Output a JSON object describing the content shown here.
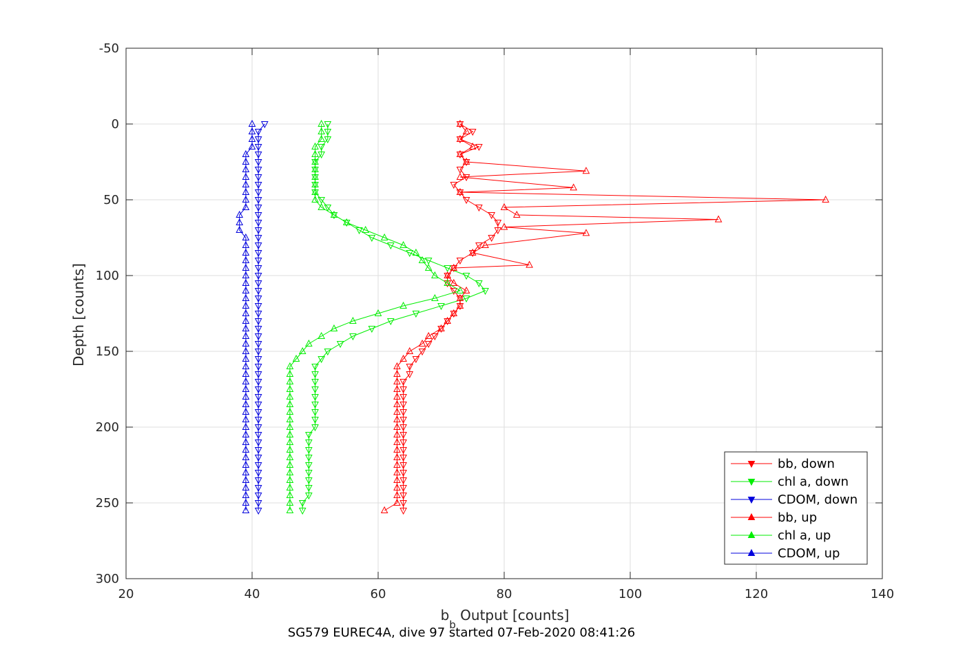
{
  "chart_data": {
    "type": "line",
    "title": "",
    "caption": "SG579 EUREC4A, dive 97 started 07-Feb-2020 08:41:26",
    "xlabel_main": "b",
    "xlabel_sub": "b",
    "xlabel_rest": " Output [counts]",
    "ylabel": "Depth [counts]",
    "xlim": [
      20,
      140
    ],
    "ylim": [
      -50,
      300
    ],
    "y_reversed": true,
    "xticks": [
      20,
      40,
      60,
      80,
      100,
      120,
      140
    ],
    "yticks": [
      -50,
      0,
      50,
      100,
      150,
      200,
      250,
      300
    ],
    "grid": true,
    "legend_position": "bottom-right",
    "series": [
      {
        "name": "bb, down",
        "color": "#ff0000",
        "marker": "triangle-down",
        "points": [
          [
            73,
            0
          ],
          [
            75,
            5
          ],
          [
            73,
            10
          ],
          [
            76,
            15
          ],
          [
            73,
            20
          ],
          [
            74,
            25
          ],
          [
            73,
            30
          ],
          [
            74,
            35
          ],
          [
            72,
            40
          ],
          [
            73,
            45
          ],
          [
            74,
            50
          ],
          [
            76,
            55
          ],
          [
            78,
            60
          ],
          [
            79,
            65
          ],
          [
            79,
            70
          ],
          [
            78,
            75
          ],
          [
            76,
            80
          ],
          [
            75,
            85
          ],
          [
            73,
            90
          ],
          [
            72,
            95
          ],
          [
            71,
            100
          ],
          [
            71,
            105
          ],
          [
            72,
            110
          ],
          [
            73,
            115
          ],
          [
            73,
            120
          ],
          [
            72,
            125
          ],
          [
            71,
            130
          ],
          [
            70,
            135
          ],
          [
            69,
            140
          ],
          [
            68,
            145
          ],
          [
            67,
            150
          ],
          [
            66,
            155
          ],
          [
            65,
            160
          ],
          [
            65,
            165
          ],
          [
            64,
            170
          ],
          [
            64,
            175
          ],
          [
            64,
            180
          ],
          [
            64,
            185
          ],
          [
            64,
            190
          ],
          [
            64,
            195
          ],
          [
            64,
            200
          ],
          [
            64,
            205
          ],
          [
            64,
            210
          ],
          [
            64,
            215
          ],
          [
            64,
            220
          ],
          [
            64,
            225
          ],
          [
            64,
            230
          ],
          [
            64,
            235
          ],
          [
            64,
            240
          ],
          [
            64,
            245
          ],
          [
            64,
            250
          ],
          [
            64,
            255
          ]
        ]
      },
      {
        "name": "chl a, down",
        "color": "#00ee00",
        "marker": "triangle-down",
        "points": [
          [
            52,
            0
          ],
          [
            52,
            5
          ],
          [
            52,
            10
          ],
          [
            51,
            15
          ],
          [
            51,
            20
          ],
          [
            50,
            25
          ],
          [
            50,
            30
          ],
          [
            50,
            35
          ],
          [
            50,
            40
          ],
          [
            50,
            45
          ],
          [
            51,
            50
          ],
          [
            52,
            55
          ],
          [
            53,
            60
          ],
          [
            55,
            65
          ],
          [
            57,
            70
          ],
          [
            59,
            75
          ],
          [
            62,
            80
          ],
          [
            65,
            85
          ],
          [
            68,
            90
          ],
          [
            71,
            95
          ],
          [
            74,
            100
          ],
          [
            76,
            105
          ],
          [
            77,
            110
          ],
          [
            74,
            115
          ],
          [
            70,
            120
          ],
          [
            66,
            125
          ],
          [
            62,
            130
          ],
          [
            59,
            135
          ],
          [
            56,
            140
          ],
          [
            54,
            145
          ],
          [
            52,
            150
          ],
          [
            51,
            155
          ],
          [
            50,
            160
          ],
          [
            50,
            165
          ],
          [
            50,
            170
          ],
          [
            50,
            175
          ],
          [
            50,
            180
          ],
          [
            50,
            185
          ],
          [
            50,
            190
          ],
          [
            50,
            195
          ],
          [
            50,
            200
          ],
          [
            49,
            205
          ],
          [
            49,
            210
          ],
          [
            49,
            215
          ],
          [
            49,
            220
          ],
          [
            49,
            225
          ],
          [
            49,
            230
          ],
          [
            49,
            235
          ],
          [
            49,
            240
          ],
          [
            49,
            245
          ],
          [
            48,
            250
          ],
          [
            48,
            255
          ]
        ]
      },
      {
        "name": "CDOM, down",
        "color": "#0000dd",
        "marker": "triangle-down",
        "points": [
          [
            42,
            0
          ],
          [
            41,
            5
          ],
          [
            41,
            10
          ],
          [
            41,
            15
          ],
          [
            41,
            20
          ],
          [
            41,
            25
          ],
          [
            41,
            30
          ],
          [
            41,
            35
          ],
          [
            41,
            40
          ],
          [
            41,
            45
          ],
          [
            41,
            50
          ],
          [
            41,
            55
          ],
          [
            41,
            60
          ],
          [
            41,
            65
          ],
          [
            41,
            70
          ],
          [
            41,
            75
          ],
          [
            41,
            80
          ],
          [
            41,
            85
          ],
          [
            41,
            90
          ],
          [
            41,
            95
          ],
          [
            41,
            100
          ],
          [
            41,
            105
          ],
          [
            41,
            110
          ],
          [
            41,
            115
          ],
          [
            41,
            120
          ],
          [
            41,
            125
          ],
          [
            41,
            130
          ],
          [
            41,
            135
          ],
          [
            41,
            140
          ],
          [
            41,
            145
          ],
          [
            41,
            150
          ],
          [
            41,
            155
          ],
          [
            41,
            160
          ],
          [
            41,
            165
          ],
          [
            41,
            170
          ],
          [
            41,
            175
          ],
          [
            41,
            180
          ],
          [
            41,
            185
          ],
          [
            41,
            190
          ],
          [
            41,
            195
          ],
          [
            41,
            200
          ],
          [
            41,
            205
          ],
          [
            41,
            210
          ],
          [
            41,
            215
          ],
          [
            41,
            220
          ],
          [
            41,
            225
          ],
          [
            41,
            230
          ],
          [
            41,
            235
          ],
          [
            41,
            240
          ],
          [
            41,
            245
          ],
          [
            41,
            250
          ],
          [
            41,
            255
          ]
        ]
      },
      {
        "name": "bb, up",
        "color": "#ff0000",
        "marker": "triangle-up",
        "points": [
          [
            73,
            0
          ],
          [
            74,
            5
          ],
          [
            73,
            10
          ],
          [
            75,
            15
          ],
          [
            73,
            20
          ],
          [
            74,
            25
          ],
          [
            93,
            31
          ],
          [
            73,
            35
          ],
          [
            91,
            42
          ],
          [
            73,
            45
          ],
          [
            131,
            50
          ],
          [
            80,
            55
          ],
          [
            82,
            60
          ],
          [
            114,
            63
          ],
          [
            80,
            68
          ],
          [
            93,
            72
          ],
          [
            77,
            80
          ],
          [
            75,
            85
          ],
          [
            84,
            93
          ],
          [
            72,
            95
          ],
          [
            71,
            100
          ],
          [
            72,
            105
          ],
          [
            74,
            110
          ],
          [
            73,
            115
          ],
          [
            73,
            120
          ],
          [
            72,
            125
          ],
          [
            71,
            130
          ],
          [
            70,
            135
          ],
          [
            68,
            140
          ],
          [
            67,
            145
          ],
          [
            65,
            150
          ],
          [
            64,
            155
          ],
          [
            63,
            160
          ],
          [
            63,
            165
          ],
          [
            63,
            170
          ],
          [
            63,
            175
          ],
          [
            63,
            180
          ],
          [
            63,
            185
          ],
          [
            63,
            190
          ],
          [
            63,
            195
          ],
          [
            63,
            200
          ],
          [
            63,
            205
          ],
          [
            63,
            210
          ],
          [
            63,
            215
          ],
          [
            63,
            220
          ],
          [
            63,
            225
          ],
          [
            63,
            230
          ],
          [
            63,
            235
          ],
          [
            63,
            240
          ],
          [
            63,
            245
          ],
          [
            63,
            250
          ],
          [
            61,
            255
          ]
        ]
      },
      {
        "name": "chl a, up",
        "color": "#00ee00",
        "marker": "triangle-up",
        "points": [
          [
            51,
            0
          ],
          [
            51,
            5
          ],
          [
            51,
            10
          ],
          [
            50,
            15
          ],
          [
            50,
            20
          ],
          [
            50,
            25
          ],
          [
            50,
            30
          ],
          [
            50,
            35
          ],
          [
            50,
            40
          ],
          [
            50,
            45
          ],
          [
            50,
            50
          ],
          [
            51,
            55
          ],
          [
            53,
            60
          ],
          [
            55,
            65
          ],
          [
            58,
            70
          ],
          [
            61,
            75
          ],
          [
            64,
            80
          ],
          [
            66,
            85
          ],
          [
            67,
            90
          ],
          [
            68,
            95
          ],
          [
            69,
            100
          ],
          [
            71,
            105
          ],
          [
            73,
            110
          ],
          [
            69,
            115
          ],
          [
            64,
            120
          ],
          [
            60,
            125
          ],
          [
            56,
            130
          ],
          [
            53,
            135
          ],
          [
            51,
            140
          ],
          [
            49,
            145
          ],
          [
            48,
            150
          ],
          [
            47,
            155
          ],
          [
            46,
            160
          ],
          [
            46,
            165
          ],
          [
            46,
            170
          ],
          [
            46,
            175
          ],
          [
            46,
            180
          ],
          [
            46,
            185
          ],
          [
            46,
            190
          ],
          [
            46,
            195
          ],
          [
            46,
            200
          ],
          [
            46,
            205
          ],
          [
            46,
            210
          ],
          [
            46,
            215
          ],
          [
            46,
            220
          ],
          [
            46,
            225
          ],
          [
            46,
            230
          ],
          [
            46,
            235
          ],
          [
            46,
            240
          ],
          [
            46,
            245
          ],
          [
            46,
            250
          ],
          [
            46,
            255
          ]
        ]
      },
      {
        "name": "CDOM, up",
        "color": "#0000dd",
        "marker": "triangle-up",
        "points": [
          [
            40,
            0
          ],
          [
            40,
            5
          ],
          [
            40,
            10
          ],
          [
            40,
            15
          ],
          [
            39,
            20
          ],
          [
            39,
            25
          ],
          [
            39,
            30
          ],
          [
            39,
            35
          ],
          [
            39,
            40
          ],
          [
            39,
            45
          ],
          [
            39,
            50
          ],
          [
            39,
            55
          ],
          [
            38,
            60
          ],
          [
            38,
            65
          ],
          [
            38,
            70
          ],
          [
            39,
            75
          ],
          [
            39,
            80
          ],
          [
            39,
            85
          ],
          [
            39,
            90
          ],
          [
            39,
            95
          ],
          [
            39,
            100
          ],
          [
            39,
            105
          ],
          [
            39,
            110
          ],
          [
            39,
            115
          ],
          [
            39,
            120
          ],
          [
            39,
            125
          ],
          [
            39,
            130
          ],
          [
            39,
            135
          ],
          [
            39,
            140
          ],
          [
            39,
            145
          ],
          [
            39,
            150
          ],
          [
            39,
            155
          ],
          [
            39,
            160
          ],
          [
            39,
            165
          ],
          [
            39,
            170
          ],
          [
            39,
            175
          ],
          [
            39,
            180
          ],
          [
            39,
            185
          ],
          [
            39,
            190
          ],
          [
            39,
            195
          ],
          [
            39,
            200
          ],
          [
            39,
            205
          ],
          [
            39,
            210
          ],
          [
            39,
            215
          ],
          [
            39,
            220
          ],
          [
            39,
            225
          ],
          [
            39,
            230
          ],
          [
            39,
            235
          ],
          [
            39,
            240
          ],
          [
            39,
            245
          ],
          [
            39,
            250
          ],
          [
            39,
            255
          ]
        ]
      }
    ]
  }
}
